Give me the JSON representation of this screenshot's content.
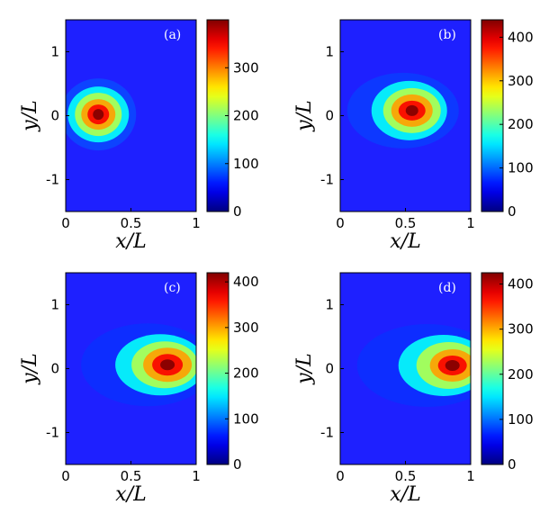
{
  "chart_data": [
    {
      "type": "heatmap",
      "panel_label": "(a)",
      "xlabel": "x/L",
      "ylabel": "y/L",
      "xlim": [
        0,
        1
      ],
      "ylim": [
        -1.5,
        1.5
      ],
      "x_ticks": [
        {
          "v": 0,
          "t": "0"
        },
        {
          "v": 0.5,
          "t": "0.5"
        },
        {
          "v": 1,
          "t": "1"
        }
      ],
      "y_ticks": [
        {
          "v": 1,
          "t": "1"
        },
        {
          "v": 0,
          "t": "0"
        },
        {
          "v": -1,
          "t": "-1"
        }
      ],
      "colorbar": {
        "min": 0,
        "max": 400,
        "ticks": [
          {
            "v": 0,
            "t": "0"
          },
          {
            "v": 100,
            "t": "100"
          },
          {
            "v": 200,
            "t": "200"
          },
          {
            "v": 300,
            "t": "300"
          }
        ]
      },
      "peak": {
        "x": 0.25,
        "y": 0.02,
        "value": 400
      },
      "grid": false
    },
    {
      "type": "heatmap",
      "panel_label": "(b)",
      "xlabel": "x/L",
      "ylabel": "y/L",
      "xlim": [
        0,
        1
      ],
      "ylim": [
        -1.5,
        1.5
      ],
      "x_ticks": [
        {
          "v": 0,
          "t": "0"
        },
        {
          "v": 0.5,
          "t": "0.5"
        },
        {
          "v": 1,
          "t": "1"
        }
      ],
      "y_ticks": [
        {
          "v": 1,
          "t": "1"
        },
        {
          "v": 0,
          "t": "0"
        },
        {
          "v": -1,
          "t": "-1"
        }
      ],
      "colorbar": {
        "min": 0,
        "max": 440,
        "ticks": [
          {
            "v": 0,
            "t": "0"
          },
          {
            "v": 100,
            "t": "100"
          },
          {
            "v": 200,
            "t": "200"
          },
          {
            "v": 300,
            "t": "300"
          },
          {
            "v": 400,
            "t": "400"
          }
        ]
      },
      "peak": {
        "x": 0.55,
        "y": 0.08,
        "value": 440
      },
      "grid": false
    },
    {
      "type": "heatmap",
      "panel_label": "(c)",
      "xlabel": "x/L",
      "ylabel": "y/L",
      "xlim": [
        0,
        1
      ],
      "ylim": [
        -1.5,
        1.5
      ],
      "x_ticks": [
        {
          "v": 0,
          "t": "0"
        },
        {
          "v": 0.5,
          "t": "0.5"
        },
        {
          "v": 1,
          "t": "1"
        }
      ],
      "y_ticks": [
        {
          "v": 1,
          "t": "1"
        },
        {
          "v": 0,
          "t": "0"
        },
        {
          "v": -1,
          "t": "-1"
        }
      ],
      "colorbar": {
        "min": 0,
        "max": 420,
        "ticks": [
          {
            "v": 0,
            "t": "0"
          },
          {
            "v": 100,
            "t": "100"
          },
          {
            "v": 200,
            "t": "200"
          },
          {
            "v": 300,
            "t": "300"
          },
          {
            "v": 400,
            "t": "400"
          }
        ]
      },
      "peak": {
        "x": 0.78,
        "y": 0.06,
        "value": 420
      },
      "grid": false
    },
    {
      "type": "heatmap",
      "panel_label": "(d)",
      "xlabel": "x/L",
      "ylabel": "y/L",
      "xlim": [
        0,
        1
      ],
      "ylim": [
        -1.5,
        1.5
      ],
      "x_ticks": [
        {
          "v": 0,
          "t": "0"
        },
        {
          "v": 0.5,
          "t": "0.5"
        },
        {
          "v": 1,
          "t": "1"
        }
      ],
      "y_ticks": [
        {
          "v": 1,
          "t": "1"
        },
        {
          "v": 0,
          "t": "0"
        },
        {
          "v": -1,
          "t": "-1"
        }
      ],
      "colorbar": {
        "min": 0,
        "max": 425,
        "ticks": [
          {
            "v": 0,
            "t": "0"
          },
          {
            "v": 100,
            "t": "100"
          },
          {
            "v": 200,
            "t": "200"
          },
          {
            "v": 300,
            "t": "300"
          },
          {
            "v": 400,
            "t": "400"
          }
        ]
      },
      "peak": {
        "x": 0.86,
        "y": 0.05,
        "value": 425
      },
      "grid": false
    }
  ],
  "colormap": "jet",
  "colors": {
    "background": "#1a1aff",
    "low": "#00008f",
    "high": "#800000"
  }
}
